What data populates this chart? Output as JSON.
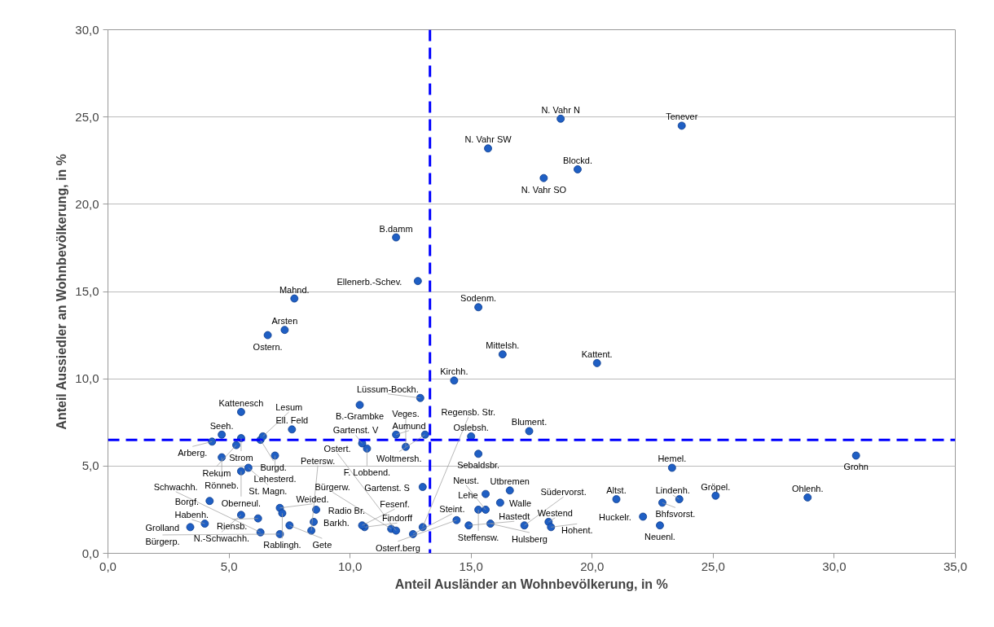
{
  "chart_data": {
    "type": "scatter",
    "xlabel": "Anteil Ausländer an Wohnbevölkerung, in %",
    "ylabel": "Anteil Aussiedler an Wohnbevölkerung, in %",
    "xlim": [
      0,
      35
    ],
    "ylim": [
      0,
      30
    ],
    "xticks": [
      {
        "value": 0,
        "label": "0,0"
      },
      {
        "value": 5,
        "label": "5,0"
      },
      {
        "value": 10,
        "label": "10,0"
      },
      {
        "value": 15,
        "label": "15,0"
      },
      {
        "value": 20,
        "label": "20,0"
      },
      {
        "value": 25,
        "label": "25,0"
      },
      {
        "value": 30,
        "label": "30,0"
      },
      {
        "value": 35,
        "label": "35,0"
      }
    ],
    "yticks": [
      {
        "value": 0,
        "label": "0,0"
      },
      {
        "value": 5,
        "label": "5,0"
      },
      {
        "value": 10,
        "label": "10,0"
      },
      {
        "value": 15,
        "label": "15,0"
      },
      {
        "value": 20,
        "label": "20,0"
      },
      {
        "value": 25,
        "label": "25,0"
      },
      {
        "value": 30,
        "label": "30,0"
      }
    ],
    "grid": "y",
    "marker": "circle",
    "color": "#1f5fc4",
    "ref_lines": [
      {
        "axis": "x",
        "value": 13.3,
        "color": "#0000ff",
        "line_style": "dashed"
      },
      {
        "axis": "y",
        "value": 6.5,
        "color": "#0000ff",
        "line_style": "dashed"
      }
    ],
    "x": [
      23.7,
      18.7,
      15.7,
      19.4,
      18.0,
      11.9,
      12.8,
      7.7,
      15.3,
      7.3,
      6.6,
      16.3,
      20.2,
      14.3,
      12.9,
      10.4,
      5.5,
      7.6,
      17.4,
      4.7,
      5.5,
      6.3,
      6.4,
      4.3,
      5.3,
      11.9,
      13.1,
      15.0,
      10.5,
      10.7,
      12.3,
      15.3,
      30.9,
      4.7,
      6.9,
      23.3,
      5.8,
      5.5,
      13.0,
      16.6,
      15.6,
      25.1,
      28.9,
      21.0,
      23.6,
      4.2,
      16.2,
      22.9,
      7.1,
      8.6,
      15.3,
      15.6,
      7.2,
      5.5,
      22.1,
      6.2,
      14.4,
      8.5,
      18.2,
      15.8,
      4.0,
      7.5,
      14.9,
      17.2,
      22.8,
      10.6,
      3.4,
      13.0,
      18.3,
      10.5,
      11.7,
      8.4,
      11.9,
      6.3,
      7.1,
      12.6
    ],
    "values": [
      24.5,
      24.9,
      23.2,
      22.0,
      21.5,
      18.1,
      15.6,
      14.6,
      14.1,
      12.8,
      12.5,
      11.4,
      10.9,
      9.9,
      8.9,
      8.5,
      8.1,
      7.1,
      7.0,
      6.8,
      6.6,
      6.5,
      6.7,
      6.4,
      6.2,
      6.8,
      6.8,
      6.7,
      6.3,
      6.0,
      6.1,
      5.7,
      5.6,
      5.5,
      5.6,
      4.9,
      4.9,
      4.7,
      3.8,
      3.6,
      3.4,
      3.3,
      3.2,
      3.1,
      3.1,
      3.0,
      2.9,
      2.9,
      2.6,
      2.5,
      2.5,
      2.5,
      2.3,
      2.2,
      2.1,
      2.0,
      1.9,
      1.8,
      1.8,
      1.7,
      1.7,
      1.6,
      1.6,
      1.6,
      1.6,
      1.5,
      1.5,
      1.5,
      1.5,
      1.6,
      1.4,
      1.3,
      1.3,
      1.2,
      1.1,
      1.1
    ],
    "annotations": [
      {
        "text": "Tenever",
        "x": 23.7,
        "y": 24.5
      },
      {
        "text": "N. Vahr N",
        "x": 18.7,
        "y": 24.9
      },
      {
        "text": "N. Vahr SW",
        "x": 15.7,
        "y": 23.2
      },
      {
        "text": "Blockd.",
        "x": 19.4,
        "y": 22.0
      },
      {
        "text": "N. Vahr SO",
        "x": 18.0,
        "y": 21.5
      },
      {
        "text": "B.damm",
        "x": 11.9,
        "y": 18.1
      },
      {
        "text": "Ellenerb.-Schev.",
        "x": 12.8,
        "y": 15.6
      },
      {
        "text": "Mahnd.",
        "x": 7.7,
        "y": 14.6
      },
      {
        "text": "Sodenm.",
        "x": 15.3,
        "y": 14.1
      },
      {
        "text": "Arsten",
        "x": 7.3,
        "y": 12.8
      },
      {
        "text": "Ostern.",
        "x": 6.6,
        "y": 12.5
      },
      {
        "text": "Mittelsh.",
        "x": 16.3,
        "y": 11.4
      },
      {
        "text": "Kattent.",
        "x": 20.2,
        "y": 10.9
      },
      {
        "text": "Kirchh.",
        "x": 14.3,
        "y": 9.9
      },
      {
        "text": "Lüssum-Bockh.",
        "x": 12.9,
        "y": 8.9
      },
      {
        "text": "B.-Grambke",
        "x": 10.4,
        "y": 8.5
      },
      {
        "text": "Kattenesch",
        "x": 5.5,
        "y": 8.1
      },
      {
        "text": "Ell. Feld",
        "x": 7.6,
        "y": 7.1
      },
      {
        "text": "Blument.",
        "x": 17.4,
        "y": 7.0
      },
      {
        "text": "Seeh.",
        "x": 4.7,
        "y": 6.8
      },
      {
        "text": "Strom",
        "x": 5.5,
        "y": 6.6
      },
      {
        "text": "Burgd.",
        "x": 6.3,
        "y": 6.5
      },
      {
        "text": "Lesum",
        "x": 6.4,
        "y": 6.7
      },
      {
        "text": "Arberg.",
        "x": 4.3,
        "y": 6.4
      },
      {
        "text": "Rekum",
        "x": 5.3,
        "y": 6.2
      },
      {
        "text": "Aumund",
        "x": 11.9,
        "y": 6.8
      },
      {
        "text": "Woltmersh.",
        "x": 13.1,
        "y": 6.8
      },
      {
        "text": "Oslebsh.",
        "x": 15.0,
        "y": 6.7
      },
      {
        "text": "Gartenst. V",
        "x": 10.5,
        "y": 6.3
      },
      {
        "text": "F. Lobbend.",
        "x": 10.7,
        "y": 6.0
      },
      {
        "text": "Veges.",
        "x": 12.3,
        "y": 6.1
      },
      {
        "text": "Sebaldsbr.",
        "x": 15.3,
        "y": 5.7
      },
      {
        "text": "Grohn",
        "x": 30.9,
        "y": 5.6
      },
      {
        "text": "Rönneb.",
        "x": 4.7,
        "y": 5.5
      },
      {
        "text": "Lehesterd.",
        "x": 6.9,
        "y": 5.6
      },
      {
        "text": "Hemel.",
        "x": 23.3,
        "y": 4.9
      },
      {
        "text": "St. Magn.",
        "x": 5.8,
        "y": 4.9
      },
      {
        "text": "Oberneul.",
        "x": 5.5,
        "y": 4.7
      },
      {
        "text": "Gartenst. S",
        "x": 13.0,
        "y": 3.8
      },
      {
        "text": "Utbremen",
        "x": 16.6,
        "y": 3.6
      },
      {
        "text": "Lehe",
        "x": 15.6,
        "y": 3.4
      },
      {
        "text": "Gröpel.",
        "x": 25.1,
        "y": 3.3
      },
      {
        "text": "Ohlenh.",
        "x": 28.9,
        "y": 3.2
      },
      {
        "text": "Altst.",
        "x": 21.0,
        "y": 3.1
      },
      {
        "text": "Lindenh.",
        "x": 23.6,
        "y": 3.1
      },
      {
        "text": "Borgf.",
        "x": 4.2,
        "y": 3.0
      },
      {
        "text": "Walle",
        "x": 16.2,
        "y": 2.9
      },
      {
        "text": "Bhfsvorst.",
        "x": 22.9,
        "y": 2.9
      },
      {
        "text": "Weided.",
        "x": 7.1,
        "y": 2.6
      },
      {
        "text": "Radio Br.",
        "x": 8.6,
        "y": 2.5
      },
      {
        "text": "Steffensw.",
        "x": 15.3,
        "y": 2.5
      },
      {
        "text": "Neust.",
        "x": 15.6,
        "y": 2.5
      },
      {
        "text": "Rablingh.",
        "x": 7.2,
        "y": 2.3
      },
      {
        "text": "N.-Schwachh.",
        "x": 5.5,
        "y": 2.2
      },
      {
        "text": "Huckelr.",
        "x": 22.1,
        "y": 2.1
      },
      {
        "text": "Riensb.",
        "x": 6.2,
        "y": 2.0
      },
      {
        "text": "Osterf.berg",
        "x": 14.4,
        "y": 1.9
      },
      {
        "text": "Barkh.",
        "x": 8.5,
        "y": 1.8
      },
      {
        "text": "Westend",
        "x": 18.2,
        "y": 1.8
      },
      {
        "text": "Hulsberg",
        "x": 15.8,
        "y": 1.7
      },
      {
        "text": "Habenh.",
        "x": 4.0,
        "y": 1.7
      },
      {
        "text": "Gete",
        "x": 7.5,
        "y": 1.6
      },
      {
        "text": "Hastedt",
        "x": 14.9,
        "y": 1.6
      },
      {
        "text": "Südervorst.",
        "x": 17.2,
        "y": 1.6
      },
      {
        "text": "Neuenl.",
        "x": 22.8,
        "y": 1.6
      },
      {
        "text": "Findorff",
        "x": 10.6,
        "y": 1.5
      },
      {
        "text": "Grolland",
        "x": 3.4,
        "y": 1.5
      },
      {
        "text": "Regensb. Str.",
        "x": 13.0,
        "y": 1.5
      },
      {
        "text": "Hohent.",
        "x": 18.3,
        "y": 1.5
      },
      {
        "text": "Fesenf.",
        "x": 10.5,
        "y": 1.6
      },
      {
        "text": "Bürgerw.",
        "x": 11.7,
        "y": 1.4
      },
      {
        "text": "Petersw.",
        "x": 8.4,
        "y": 1.3
      },
      {
        "text": "Ostert.",
        "x": 11.9,
        "y": 1.3
      },
      {
        "text": "Schwachh.",
        "x": 6.3,
        "y": 1.2
      },
      {
        "text": "Bürgerp.",
        "x": 7.1,
        "y": 1.1
      },
      {
        "text": "Steint.",
        "x": 12.6,
        "y": 1.1
      }
    ]
  }
}
